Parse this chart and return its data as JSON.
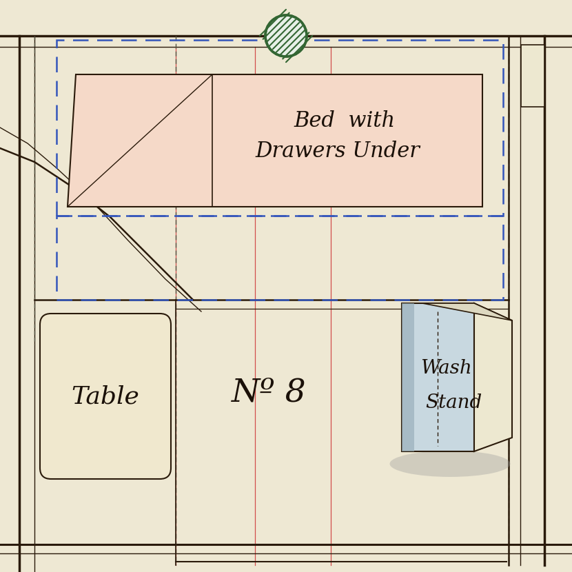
{
  "bg_color": "#eee8d3",
  "bed_label_line1": "Bed  with",
  "bed_label_line2": "Drawers Under",
  "table_label": "Table",
  "washstand_label_line1": "Wash",
  "washstand_label_line2": "Stand",
  "room_number": "Nº 8",
  "bed_fill": "#f5d9c8",
  "bed_outline": "#2a1a0a",
  "blue_dash_color": "#3355bb",
  "red_line_color": "#cc3333",
  "green_hatch_color": "#336633",
  "wall_color": "#2a1a0a",
  "table_fill": "#f0e8ce",
  "washstand_fill_dark": "#c8d8e0",
  "washstand_fill_light": "#ede8d0",
  "text_color": "#1a1008",
  "shadow_color": "#999999",
  "dashed_wall_color": "#555544"
}
